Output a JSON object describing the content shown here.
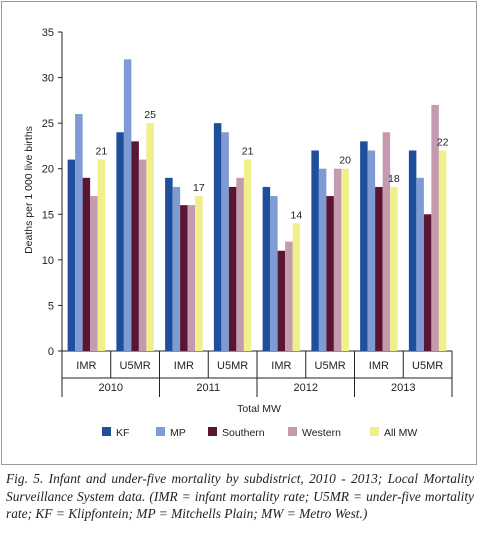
{
  "chart_data": {
    "type": "bar",
    "groups": [
      "2010",
      "2011",
      "2012",
      "2013"
    ],
    "subcategories": [
      "IMR",
      "U5MR"
    ],
    "series": [
      {
        "name": "KF",
        "color": "#1f4e9c",
        "values": [
          21,
          24,
          19,
          25,
          18,
          22,
          23,
          22
        ]
      },
      {
        "name": "MP",
        "color": "#7f9bd4",
        "values": [
          26,
          32,
          18,
          24,
          17,
          20,
          22,
          19
        ]
      },
      {
        "name": "Southern",
        "color": "#5a1533",
        "values": [
          19,
          23,
          16,
          18,
          11,
          17,
          18,
          15
        ]
      },
      {
        "name": "Western",
        "color": "#c49aae",
        "values": [
          17,
          21,
          16,
          19,
          12,
          20,
          24,
          27
        ]
      },
      {
        "name": "All MW",
        "color": "#efef8c",
        "values": [
          21,
          25,
          17,
          21,
          14,
          20,
          18,
          22
        ]
      }
    ],
    "data_labels_series": "All MW",
    "ylabel": "Deaths per 1 000 live births",
    "xlabel": "Total MW",
    "ylim": [
      0,
      35
    ],
    "yticks": [
      "0",
      "5",
      "10",
      "15",
      "20",
      "25",
      "30",
      "35"
    ],
    "grid": false,
    "legend_position": "bottom"
  },
  "caption": "Fig. 5. Infant and under-five mortality by subdistrict, 2010 - 2013; Local Mortality Surveillance System data. (IMR = infant mortality rate; U5MR = under-five mortality rate; KF = Klipfontein; MP = Mitchells Plain; MW = Metro West.)"
}
